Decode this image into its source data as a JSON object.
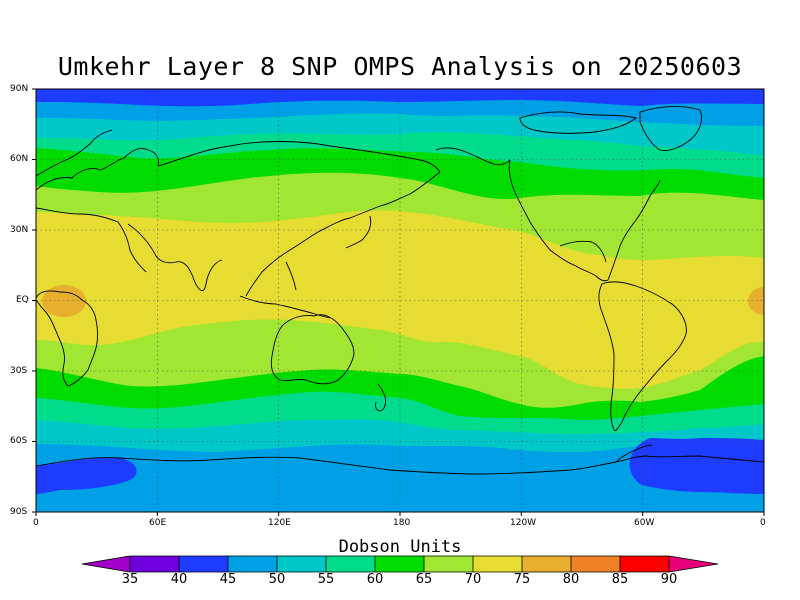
{
  "title": "Umkehr Layer 8 SNP OMPS Analysis on 20250603",
  "colorbar": {
    "title": "Dobson Units",
    "ticks": [
      "35",
      "40",
      "45",
      "50",
      "55",
      "60",
      "65",
      "70",
      "75",
      "80",
      "85",
      "90"
    ],
    "colors": [
      "#a000c8",
      "#6e00dc",
      "#1e3cff",
      "#00a0e6",
      "#00c8c8",
      "#00dc8c",
      "#00dc00",
      "#a0e632",
      "#e6dc32",
      "#e6af2d",
      "#f08228",
      "#fa0000",
      "#e8007a"
    ]
  },
  "map": {
    "lat_labels": [
      "90N",
      "60N",
      "30N",
      "EQ",
      "30S",
      "60S",
      "90S"
    ],
    "lon_labels": [
      "0",
      "60E",
      "120E",
      "180",
      "120W",
      "60W",
      "0"
    ],
    "grid": "dashed"
  },
  "chart_data": {
    "type": "heatmap",
    "title": "Umkehr Layer 8 SNP OMPS Analysis on 20250603",
    "xlabel": "",
    "ylabel": "",
    "units": "Dobson Units",
    "xlim": [
      0,
      360
    ],
    "ylim": [
      -90,
      90
    ],
    "contour_levels": [
      35,
      40,
      45,
      50,
      55,
      60,
      65,
      70,
      75,
      80,
      85,
      90
    ],
    "zonal_bands": [
      {
        "lat_range": [
          75,
          90
        ],
        "value_range": [
          40,
          45
        ]
      },
      {
        "lat_range": [
          58,
          75
        ],
        "value_range": [
          45,
          55
        ]
      },
      {
        "lat_range": [
          40,
          58
        ],
        "value_range": [
          60,
          70
        ]
      },
      {
        "lat_range": [
          -25,
          40
        ],
        "value_range": [
          70,
          75
        ]
      },
      {
        "lat_range": [
          -40,
          -25
        ],
        "value_range": [
          65,
          70
        ]
      },
      {
        "lat_range": [
          -58,
          -40
        ],
        "value_range": [
          55,
          65
        ]
      },
      {
        "lat_range": [
          -75,
          -58
        ],
        "value_range": [
          45,
          55
        ]
      },
      {
        "lat_range": [
          -90,
          -75
        ],
        "value_range": [
          40,
          45
        ]
      }
    ],
    "local_maxima": [
      {
        "lon": 10,
        "lat": 0,
        "value_range": [
          75,
          80
        ]
      },
      {
        "lon": 355,
        "lat": 0,
        "value_range": [
          75,
          80
        ]
      }
    ]
  }
}
